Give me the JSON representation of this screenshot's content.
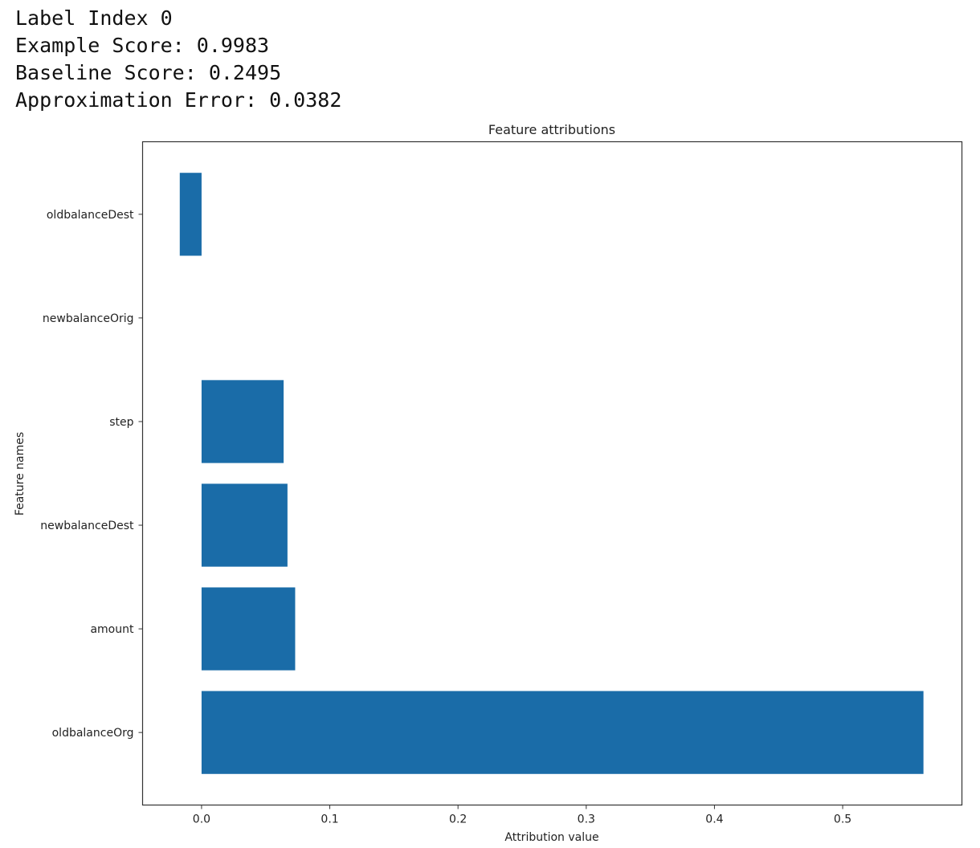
{
  "header": {
    "label_index": "Label Index 0",
    "example_score": "Example Score: 0.9983",
    "baseline_score": "Baseline Score: 0.2495",
    "approximation_error": "Approximation Error: 0.0382"
  },
  "chart_data": {
    "type": "bar",
    "orientation": "horizontal",
    "title": "Feature attributions",
    "xlabel": "Attribution value",
    "ylabel": "Feature names",
    "categories": [
      "oldbalanceOrg",
      "amount",
      "newbalanceDest",
      "step",
      "newbalanceOrig",
      "oldbalanceDest"
    ],
    "values": [
      0.563,
      0.073,
      0.067,
      0.064,
      0.0,
      -0.017
    ],
    "xlim": [
      -0.046,
      0.593
    ],
    "ylim": [
      -0.7,
      5.7
    ],
    "xticks": [
      0.0,
      0.1,
      0.2,
      0.3,
      0.4,
      0.5
    ],
    "xtick_labels": [
      "0.0",
      "0.1",
      "0.2",
      "0.3",
      "0.4",
      "0.5"
    ],
    "grid": false,
    "bar_color": "#1a6ca8"
  }
}
